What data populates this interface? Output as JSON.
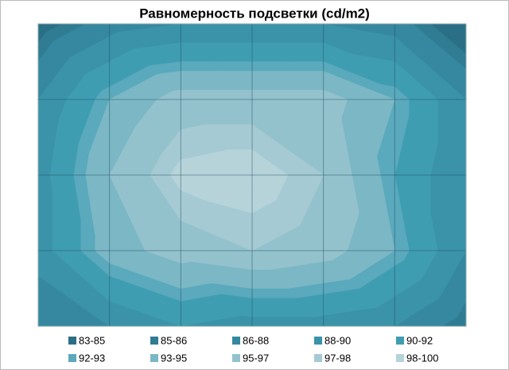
{
  "chart_data": {
    "type": "contour",
    "title": "Равномерность подсветки (cd/m2)",
    "x": [
      0,
      1,
      2,
      3,
      4,
      5,
      6
    ],
    "y": [
      0,
      1,
      2,
      3,
      4
    ],
    "z": [
      [
        84,
        87,
        88,
        88,
        88,
        87,
        83
      ],
      [
        88,
        93,
        96,
        96,
        96,
        93,
        88
      ],
      [
        89,
        95,
        98.5,
        99,
        97,
        92,
        88
      ],
      [
        89,
        94,
        96,
        97,
        96,
        93,
        88
      ],
      [
        86,
        88,
        90,
        89,
        89,
        88,
        85
      ]
    ],
    "grid": true,
    "bands": [
      {
        "name": "83-85",
        "range": [
          83,
          85
        ],
        "color": "#2b6f86"
      },
      {
        "name": "85-86",
        "range": [
          85,
          86
        ],
        "color": "#2f7c93"
      },
      {
        "name": "86-88",
        "range": [
          86,
          88
        ],
        "color": "#35889f"
      },
      {
        "name": "88-90",
        "range": [
          88,
          90
        ],
        "color": "#3a93a9"
      },
      {
        "name": "90-92",
        "range": [
          90,
          92
        ],
        "color": "#3f9db2"
      },
      {
        "name": "92-93",
        "range": [
          92,
          93
        ],
        "color": "#5aa9bc"
      },
      {
        "name": "93-95",
        "range": [
          93,
          95
        ],
        "color": "#7bb7c5"
      },
      {
        "name": "95-97",
        "range": [
          95,
          97
        ],
        "color": "#93c2cd"
      },
      {
        "name": "97-98",
        "range": [
          97,
          98
        ],
        "color": "#a5cad3"
      },
      {
        "name": "98-100",
        "range": [
          98,
          100
        ],
        "color": "#b6d3da"
      }
    ]
  }
}
